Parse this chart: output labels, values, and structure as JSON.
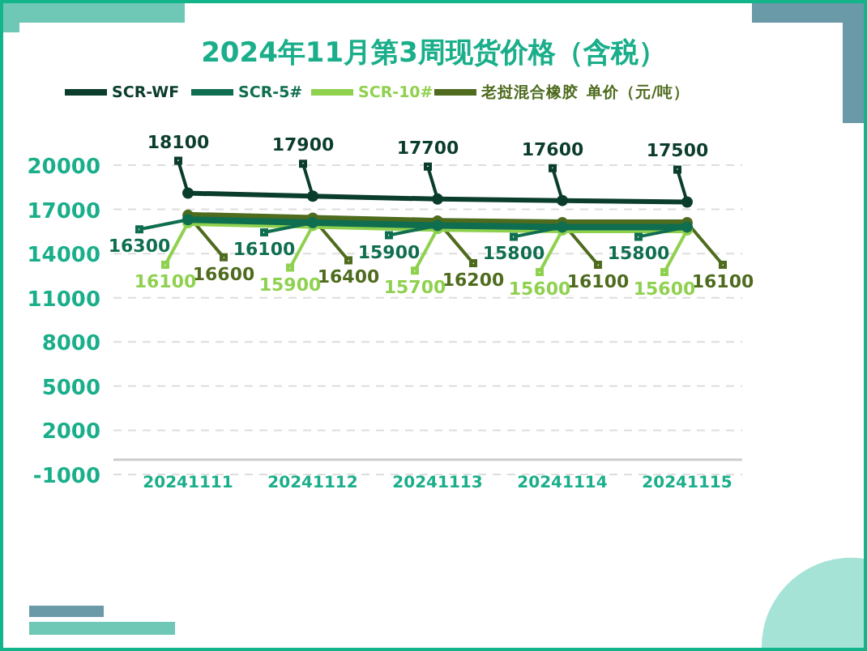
{
  "chart_data": {
    "type": "line",
    "title": "2024年11月第3周现货价格（含税）",
    "legend_title": "单价（元/吨）",
    "categories": [
      "20241111",
      "20241112",
      "20241113",
      "20241114",
      "20241115"
    ],
    "series": [
      {
        "name": "SCR-WF",
        "color": "#0b3d2c",
        "values": [
          18100,
          17900,
          17700,
          17600,
          17500
        ]
      },
      {
        "name": "SCR-5#",
        "color": "#0f6e50",
        "values": [
          16300,
          16100,
          15900,
          15800,
          15800
        ]
      },
      {
        "name": "SCR-10#",
        "color": "#8fd14f",
        "values": [
          16100,
          15900,
          15700,
          15600,
          15600
        ]
      },
      {
        "name": "老挝混合橡胶",
        "color": "#4e6b1e",
        "values": [
          16600,
          16400,
          16200,
          16100,
          16100
        ]
      }
    ],
    "ylim": [
      -1000,
      20000
    ],
    "yticks": [
      -1000,
      2000,
      5000,
      8000,
      11000,
      14000,
      17000,
      20000
    ],
    "grid": "y",
    "legend": "top",
    "data_labels": true,
    "marker": "circle",
    "line_style": "solid"
  }
}
